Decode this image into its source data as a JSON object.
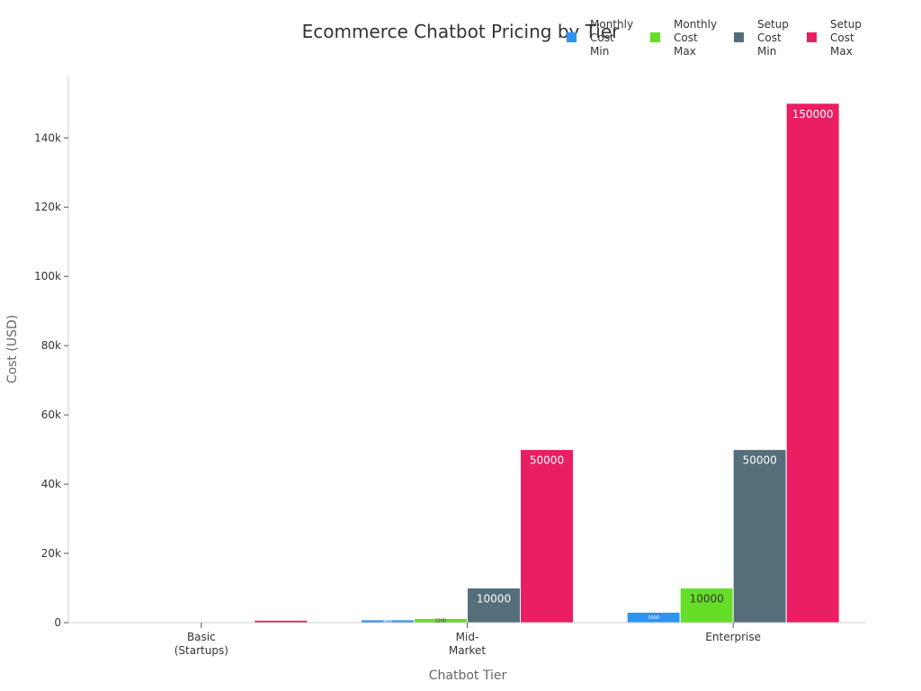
{
  "chart_data": {
    "type": "bar",
    "title": "Ecommerce Chatbot Pricing by Tier",
    "xlabel": "Chatbot Tier",
    "ylabel": "Cost (USD)",
    "categories": [
      [
        "Basic",
        "(Startups)"
      ],
      [
        "Mid-",
        "Market"
      ],
      [
        "Enterprise"
      ]
    ],
    "ylim": [
      0,
      158000
    ],
    "yticks": [
      0,
      20000,
      40000,
      60000,
      80000,
      100000,
      120000,
      140000
    ],
    "ytick_labels": [
      "0",
      "20k",
      "40k",
      "60k",
      "80k",
      "100k",
      "120k",
      "140k"
    ],
    "legend_position": "top-right",
    "series": [
      {
        "name": [
          "Monthly",
          "Cost",
          "Min"
        ],
        "color": "#2f93f0",
        "values": [
          0,
          800,
          3000
        ],
        "labels": [
          "",
          "800",
          "3000"
        ]
      },
      {
        "name": [
          "Monthly",
          "Cost",
          "Max"
        ],
        "color": "#66dd29",
        "values": [
          250,
          1200,
          10000
        ],
        "labels": [
          "",
          "1200",
          "10000"
        ]
      },
      {
        "name": [
          "Setup",
          "Cost",
          "Min"
        ],
        "color": "#546e7a",
        "values": [
          0,
          10000,
          50000
        ],
        "labels": [
          "",
          "10000",
          "50000"
        ]
      },
      {
        "name": [
          "Setup",
          "Cost",
          "Max"
        ],
        "color": "#e91e63",
        "values": [
          700,
          50000,
          150000
        ],
        "labels": [
          "",
          "50000",
          "150000"
        ]
      }
    ]
  }
}
